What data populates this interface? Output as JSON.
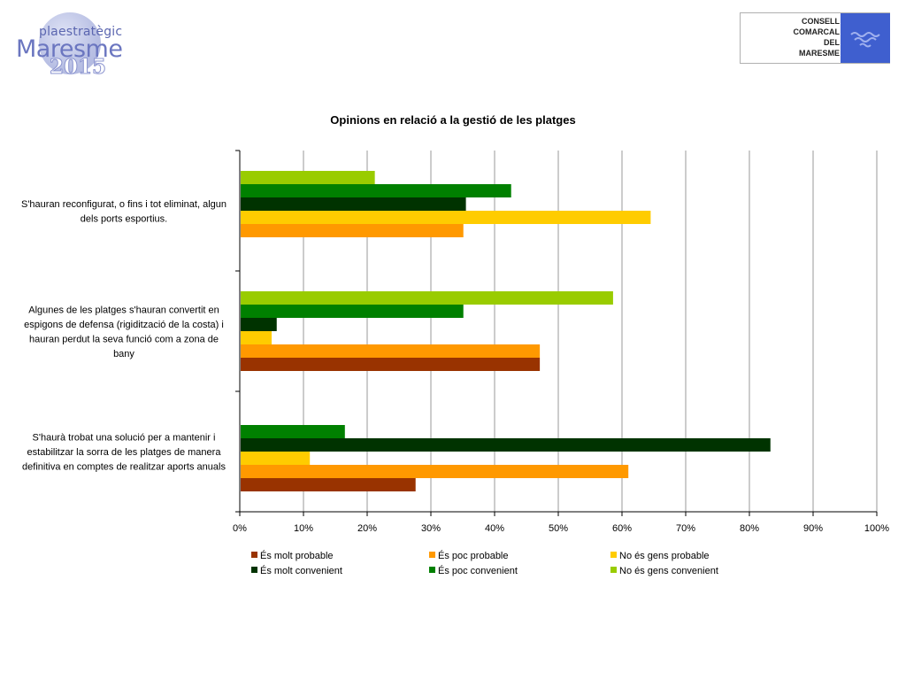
{
  "header": {
    "left_logo": {
      "line1": "plaestratègic",
      "line2": "Maresme",
      "line3": "2015"
    },
    "right_logo": {
      "lines": [
        "CONSELL",
        "COMARCAL",
        "DEL",
        "MARESME"
      ],
      "icon": "waves-icon",
      "color": "#3f5fcf"
    }
  },
  "chart_data": {
    "type": "bar",
    "orientation": "horizontal",
    "title": "Opinions en relació a la gestió de les platges",
    "xlabel": "",
    "ylabel": "",
    "xlim": [
      0,
      100
    ],
    "x_ticks": [
      "0%",
      "10%",
      "20%",
      "30%",
      "40%",
      "50%",
      "60%",
      "70%",
      "80%",
      "90%",
      "100%"
    ],
    "grid": "vertical",
    "legend_position": "bottom",
    "categories": [
      "S'hauran reconfigurat, o fins i tot eliminat, algun dels ports esportius.",
      "Algunes de les platges s'hauran convertit en espigons de defensa (rigidització de la costa) i hauran perdut la seva funció com a zona de bany",
      "S'haurà trobat una solució per a mantenir i estabilitzar la sorra de les platges de manera definitiva en comptes de realitzar aports anuals"
    ],
    "category_label_lines": [
      [
        "S'hauran reconfigurat, o fins i tot eliminat, algun",
        "dels ports esportius."
      ],
      [
        "Algunes de les platges s'hauran convertit en",
        "espigons de defensa (rigidització de la costa) i",
        "hauran perdut la seva funció com a zona de",
        "bany"
      ],
      [
        "S'haurà trobat una solució per a mantenir i",
        "estabilitzar la sorra de les platges de manera",
        "definitiva en comptes de realitzar aports anuals"
      ]
    ],
    "series": [
      {
        "name": "És molt probable",
        "color": "#993300",
        "values": [
          0,
          47.1,
          27.6
        ]
      },
      {
        "name": "És poc probable",
        "color": "#ff9900",
        "values": [
          35.1,
          47.1,
          61.0
        ]
      },
      {
        "name": "No és gens probable",
        "color": "#ffcc00",
        "values": [
          64.5,
          5.0,
          11.0
        ]
      },
      {
        "name": "És molt convenient",
        "color": "#003300",
        "values": [
          35.5,
          5.8,
          83.3
        ]
      },
      {
        "name": "És poc convenient",
        "color": "#008000",
        "values": [
          42.6,
          35.1,
          16.5
        ]
      },
      {
        "name": "No és gens convenient",
        "color": "#99cc00",
        "values": [
          21.2,
          58.6,
          0
        ]
      }
    ]
  }
}
